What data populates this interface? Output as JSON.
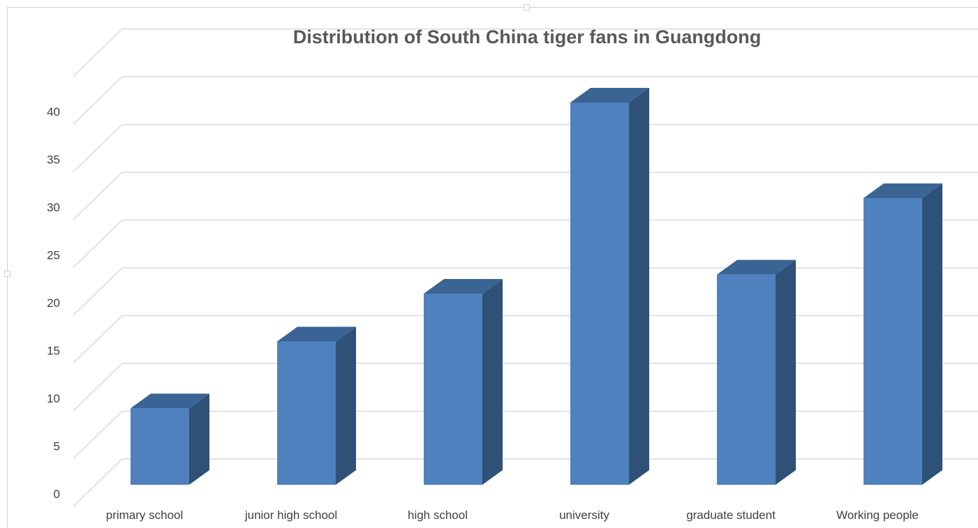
{
  "chart_data": {
    "type": "bar",
    "title": "Distribution of South China tiger fans in Guangdong",
    "categories": [
      "primary school",
      "junior high school",
      "high school",
      "university",
      "graduate student",
      "Working people"
    ],
    "values": [
      8,
      15,
      20,
      40,
      22,
      30
    ],
    "ylim": [
      0,
      40
    ],
    "yticks": [
      0,
      5,
      10,
      15,
      20,
      25,
      30,
      35,
      40
    ],
    "xlabel": "",
    "ylabel": "",
    "grid": true,
    "style": "3d-column",
    "colors": {
      "front": "#4E81BD",
      "side": "#2F5177",
      "top": "#3A6494",
      "grid": "#d9d9d9"
    }
  }
}
